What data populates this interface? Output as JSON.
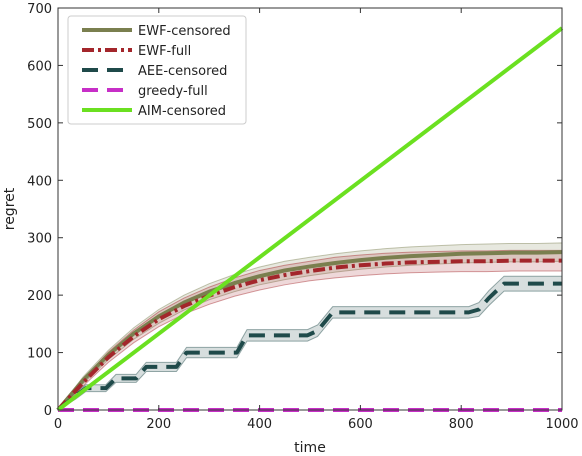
{
  "chart_data": {
    "type": "line",
    "xlabel": "time",
    "ylabel": "regret",
    "xlim": [
      0,
      1000
    ],
    "ylim": [
      0,
      700
    ],
    "x_ticks": [
      "0",
      "200",
      "400",
      "600",
      "800",
      "1000"
    ],
    "y_ticks": [
      "0",
      "100",
      "200",
      "300",
      "400",
      "500",
      "600",
      "700"
    ],
    "grid": false,
    "legend_position": "top-left",
    "series": [
      {
        "name": "EWF-censored",
        "color": "#7a7f4f",
        "style": "solid",
        "x": [
          0,
          50,
          100,
          150,
          200,
          250,
          300,
          350,
          400,
          450,
          500,
          550,
          600,
          650,
          700,
          750,
          800,
          850,
          900,
          950,
          1000
        ],
        "y": [
          0,
          52,
          96,
          133,
          163,
          187,
          206,
          221,
          233,
          243,
          250,
          256,
          261,
          265,
          268,
          270,
          272,
          273,
          274,
          274,
          275
        ],
        "band_low": [
          0,
          46,
          88,
          123,
          151,
          174,
          192,
          206,
          218,
          227,
          234,
          240,
          245,
          249,
          252,
          254,
          256,
          257,
          258,
          258,
          259
        ],
        "band_high": [
          0,
          58,
          104,
          143,
          175,
          200,
          220,
          236,
          249,
          259,
          266,
          272,
          277,
          281,
          284,
          286,
          288,
          289,
          290,
          290,
          291
        ]
      },
      {
        "name": "EWF-full",
        "color": "#a3262b",
        "style": "dashdot",
        "x": [
          0,
          50,
          100,
          150,
          200,
          250,
          300,
          350,
          400,
          450,
          500,
          550,
          600,
          650,
          700,
          750,
          800,
          850,
          900,
          950,
          1000
        ],
        "y": [
          0,
          48,
          92,
          128,
          158,
          181,
          199,
          214,
          226,
          235,
          242,
          248,
          252,
          255,
          257,
          258,
          259,
          259,
          260,
          260,
          260
        ],
        "band_low": [
          0,
          42,
          83,
          117,
          145,
          167,
          184,
          198,
          209,
          218,
          225,
          230,
          234,
          237,
          239,
          240,
          241,
          241,
          242,
          242,
          242
        ],
        "band_high": [
          0,
          54,
          101,
          139,
          171,
          195,
          214,
          230,
          243,
          252,
          259,
          266,
          270,
          273,
          275,
          276,
          277,
          277,
          278,
          278,
          278
        ]
      },
      {
        "name": "AEE-censored",
        "color": "#1f4a4a",
        "style": "dashed",
        "x": [
          0,
          35,
          55,
          95,
          115,
          155,
          175,
          235,
          255,
          295,
          315,
          355,
          375,
          475,
          495,
          515,
          545,
          815,
          835,
          855,
          885,
          1000
        ],
        "y": [
          0,
          25,
          38,
          38,
          55,
          55,
          75,
          75,
          100,
          100,
          100,
          100,
          130,
          130,
          130,
          138,
          170,
          170,
          175,
          195,
          220,
          220
        ],
        "band_low": [
          0,
          19,
          32,
          32,
          48,
          48,
          67,
          67,
          91,
          91,
          91,
          91,
          120,
          120,
          120,
          128,
          160,
          160,
          163,
          182,
          207,
          207
        ],
        "band_high": [
          0,
          31,
          44,
          44,
          62,
          62,
          83,
          83,
          109,
          109,
          109,
          109,
          140,
          140,
          140,
          148,
          180,
          180,
          187,
          208,
          233,
          233
        ]
      },
      {
        "name": "greedy-full",
        "color": "#c72fc7",
        "style": "dashed",
        "x": [
          0,
          1000
        ],
        "y": [
          0,
          0
        ]
      },
      {
        "name": "AIM-censored",
        "color": "#6be020",
        "style": "solid",
        "x": [
          0,
          1000
        ],
        "y": [
          0,
          665
        ]
      }
    ]
  }
}
